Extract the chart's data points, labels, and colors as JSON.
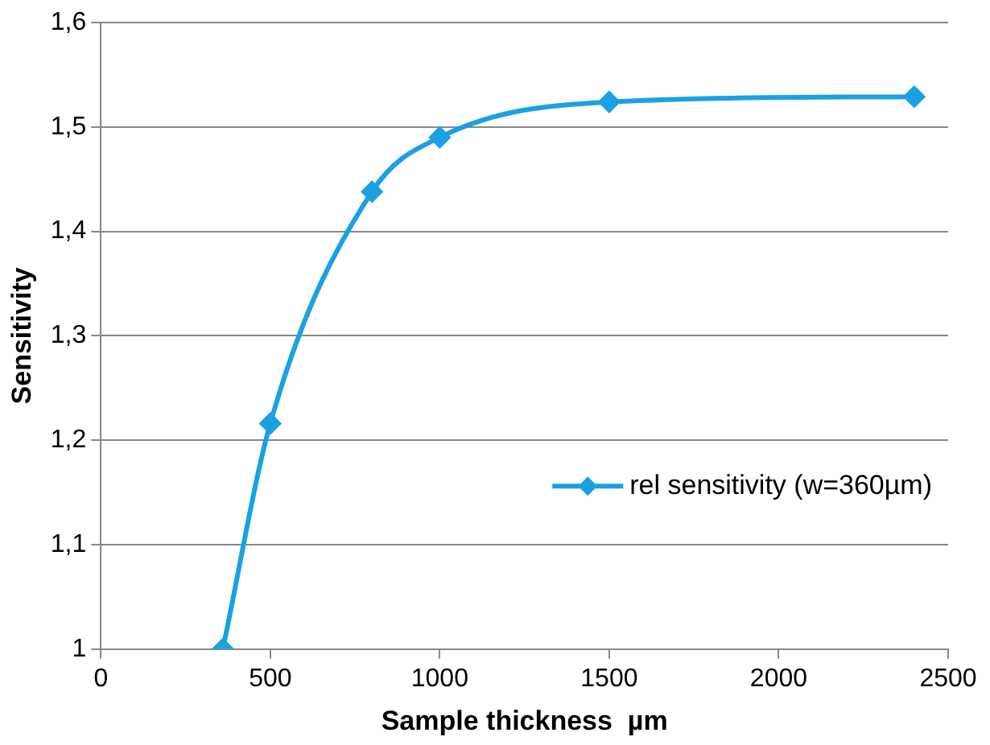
{
  "chart_data": {
    "type": "line",
    "xlabel": "Sample thickness  µm",
    "ylabel": "Sensitivity",
    "x": [
      360,
      500,
      800,
      1000,
      1500,
      2400
    ],
    "series": [
      {
        "name": "rel sensitivity (w=360µm)",
        "color": "#1ba1e2",
        "values": [
          1.0,
          1.216,
          1.438,
          1.49,
          1.524,
          1.529
        ]
      }
    ],
    "xlim": [
      0,
      2500
    ],
    "xticks": [
      0,
      500,
      1000,
      1500,
      2000,
      2500
    ],
    "ylim": [
      1,
      1.6
    ],
    "yticks": [
      {
        "value": 1,
        "label": "1"
      },
      {
        "value": 1.1,
        "label": "1,1"
      },
      {
        "value": 1.2,
        "label": "1,2"
      },
      {
        "value": 1.3,
        "label": "1,3"
      },
      {
        "value": 1.4,
        "label": "1,4"
      },
      {
        "value": 1.5,
        "label": "1,5"
      },
      {
        "value": 1.6,
        "label": "1,6"
      }
    ],
    "grid": "y",
    "legend": "right",
    "marker": "diamond",
    "line_style": "solid"
  }
}
